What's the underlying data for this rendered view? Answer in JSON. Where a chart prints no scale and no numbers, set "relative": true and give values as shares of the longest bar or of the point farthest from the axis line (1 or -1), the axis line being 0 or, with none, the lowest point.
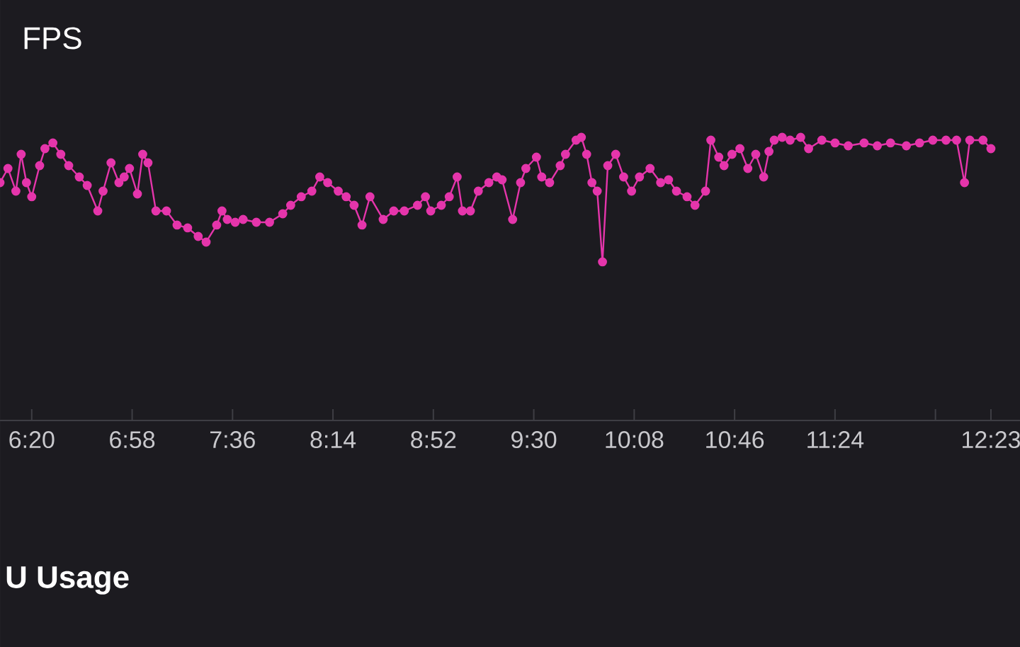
{
  "chart_data": {
    "type": "line",
    "title": "FPS",
    "relative": true,
    "marker": "circle",
    "line_style": "solid",
    "color": "#e535ab",
    "x": [
      368,
      371,
      374,
      376,
      378,
      380,
      383,
      385,
      388,
      391,
      394,
      398,
      401,
      405,
      407,
      410,
      413,
      415,
      417,
      420,
      422,
      424,
      427,
      431,
      435,
      439,
      443,
      446,
      450,
      452,
      454,
      457,
      460,
      465,
      470,
      475,
      478,
      482,
      486,
      489,
      492,
      496,
      499,
      502,
      505,
      508,
      513,
      517,
      521,
      526,
      529,
      531,
      535,
      538,
      541,
      543,
      546,
      549,
      553,
      556,
      558,
      562,
      565,
      567,
      571,
      573,
      576,
      580,
      582,
      586,
      588,
      590,
      592,
      594,
      596,
      598,
      601,
      604,
      607,
      610,
      614,
      618,
      621,
      624,
      628,
      631,
      635,
      637,
      640,
      642,
      645,
      648,
      651,
      654,
      657,
      659,
      661,
      664,
      667,
      671,
      674,
      679,
      684,
      689,
      695,
      700,
      705,
      711,
      716,
      721,
      726,
      730,
      733,
      735,
      740,
      743
    ],
    "values": [
      0.84,
      0.89,
      0.81,
      0.94,
      0.84,
      0.79,
      0.9,
      0.96,
      0.98,
      0.94,
      0.9,
      0.86,
      0.83,
      0.74,
      0.81,
      0.91,
      0.84,
      0.86,
      0.89,
      0.8,
      0.94,
      0.91,
      0.74,
      0.74,
      0.69,
      0.68,
      0.65,
      0.63,
      0.69,
      0.74,
      0.71,
      0.7,
      0.71,
      0.7,
      0.7,
      0.73,
      0.76,
      0.79,
      0.81,
      0.86,
      0.84,
      0.81,
      0.79,
      0.76,
      0.69,
      0.79,
      0.71,
      0.74,
      0.74,
      0.76,
      0.79,
      0.74,
      0.76,
      0.79,
      0.86,
      0.74,
      0.74,
      0.81,
      0.84,
      0.86,
      0.85,
      0.71,
      0.84,
      0.89,
      0.93,
      0.86,
      0.84,
      0.9,
      0.94,
      0.99,
      1.0,
      0.94,
      0.84,
      0.81,
      0.56,
      0.9,
      0.94,
      0.86,
      0.81,
      0.86,
      0.89,
      0.84,
      0.85,
      0.81,
      0.79,
      0.76,
      0.81,
      0.99,
      0.93,
      0.9,
      0.94,
      0.96,
      0.89,
      0.94,
      0.86,
      0.95,
      0.99,
      1.0,
      0.99,
      1.0,
      0.96,
      0.99,
      0.98,
      0.97,
      0.98,
      0.97,
      0.98,
      0.97,
      0.98,
      0.99,
      0.99,
      0.99,
      0.84,
      0.99,
      0.99,
      0.96
    ],
    "xlim": [
      368,
      754
    ],
    "xticks": [
      {
        "value": 380,
        "label": "6:20"
      },
      {
        "value": 418,
        "label": "6:58"
      },
      {
        "value": 456,
        "label": "7:36"
      },
      {
        "value": 494,
        "label": "8:14"
      },
      {
        "value": 532,
        "label": "8:52"
      },
      {
        "value": 570,
        "label": "9:30"
      },
      {
        "value": 608,
        "label": "10:08"
      },
      {
        "value": 646,
        "label": "10:46"
      },
      {
        "value": 684,
        "label": "11:24"
      },
      {
        "value": 722,
        "label": null
      },
      {
        "value": 743,
        "label": "12:23"
      }
    ],
    "annotations": [
      "U Usage"
    ]
  }
}
